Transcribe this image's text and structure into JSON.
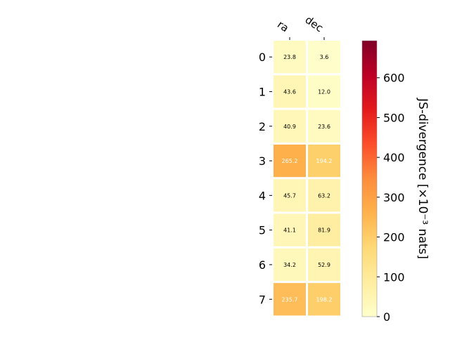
{
  "chart_data": {
    "type": "heatmap",
    "title": "",
    "x_categories": [
      "ra",
      "dec"
    ],
    "y_categories": [
      "0",
      "1",
      "2",
      "3",
      "4",
      "5",
      "6",
      "7"
    ],
    "values": [
      [
        23.8,
        3.6
      ],
      [
        43.6,
        12.0
      ],
      [
        40.9,
        23.6
      ],
      [
        265.2,
        194.2
      ],
      [
        45.7,
        63.2
      ],
      [
        41.1,
        81.9
      ],
      [
        34.2,
        52.9
      ],
      [
        235.7,
        198.2
      ]
    ],
    "value_labels": [
      [
        "23.8",
        "3.6"
      ],
      [
        "43.6",
        "12.0"
      ],
      [
        "40.9",
        "23.6"
      ],
      [
        "265.2",
        "194.2"
      ],
      [
        "45.7",
        "63.2"
      ],
      [
        "41.1",
        "81.9"
      ],
      [
        "34.2",
        "52.9"
      ],
      [
        "235.7",
        "198.2"
      ]
    ],
    "colorbar": {
      "label": "JS-divergence [×10⁻³ nats]",
      "range": [
        0,
        693
      ],
      "ticks": [
        0,
        100,
        200,
        300,
        400,
        500,
        600
      ],
      "colormap": "YlOrRd",
      "stops": [
        "#ffffcc",
        "#ffeda0",
        "#fed976",
        "#feb24c",
        "#fd8d3c",
        "#fc4e2a",
        "#e31a1c",
        "#bd0026",
        "#800026"
      ]
    },
    "grid": false
  }
}
